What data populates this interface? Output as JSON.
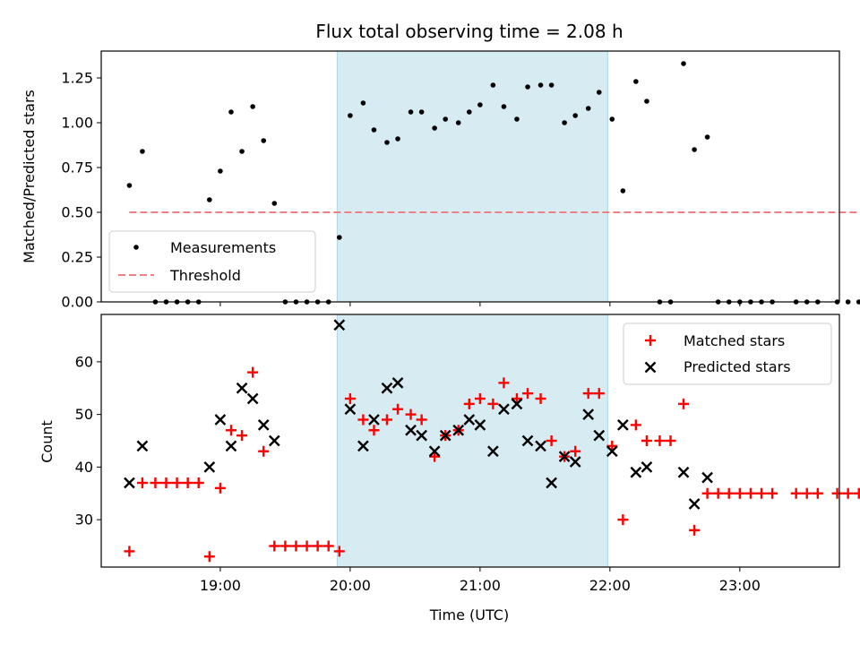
{
  "chart_data": [
    {
      "type": "scatter",
      "title": "Flux total observing time = 2.08 h",
      "xlabel": "",
      "ylabel": "Matched/Predicted stars",
      "xlim": [
        "18:05",
        "23:46"
      ],
      "ylim": [
        0,
        1.4
      ],
      "yticks": [
        "0.00",
        "0.25",
        "0.50",
        "0.75",
        "1.00",
        "1.25"
      ],
      "shaded_interval": [
        "19:54",
        "21:59"
      ],
      "legend_position": "lower-left",
      "series": [
        {
          "name": "Measurements",
          "color": "#000000",
          "marker": "dot",
          "points": [
            [
              "18:18",
              0.65
            ],
            [
              "18:24",
              0.84
            ],
            [
              "18:30",
              0
            ],
            [
              "18:35",
              0
            ],
            [
              "18:40",
              0
            ],
            [
              "18:45",
              0
            ],
            [
              "18:50",
              0
            ],
            [
              "18:55",
              0.57
            ],
            [
              "19:00",
              0.73
            ],
            [
              "19:05",
              1.06
            ],
            [
              "19:10",
              0.84
            ],
            [
              "19:15",
              1.09
            ],
            [
              "19:20",
              0.9
            ],
            [
              "19:25",
              0.55
            ],
            [
              "19:30",
              0
            ],
            [
              "19:35",
              0
            ],
            [
              "19:40",
              0
            ],
            [
              "19:45",
              0
            ],
            [
              "19:50",
              0
            ],
            [
              "19:55",
              0.36
            ],
            [
              "20:00",
              1.04
            ],
            [
              "20:06",
              1.11
            ],
            [
              "20:11",
              0.96
            ],
            [
              "20:17",
              0.89
            ],
            [
              "20:22",
              0.91
            ],
            [
              "20:28",
              1.06
            ],
            [
              "20:33",
              1.06
            ],
            [
              "20:39",
              0.97
            ],
            [
              "20:44",
              1.02
            ],
            [
              "20:50",
              1.0
            ],
            [
              "20:55",
              1.06
            ],
            [
              "21:00",
              1.1
            ],
            [
              "21:06",
              1.21
            ],
            [
              "21:11",
              1.09
            ],
            [
              "21:17",
              1.02
            ],
            [
              "21:22",
              1.2
            ],
            [
              "21:28",
              1.21
            ],
            [
              "21:33",
              1.21
            ],
            [
              "21:39",
              1.0
            ],
            [
              "21:44",
              1.04
            ],
            [
              "21:50",
              1.08
            ],
            [
              "21:55",
              1.17
            ],
            [
              "22:01",
              1.02
            ],
            [
              "22:06",
              0.62
            ],
            [
              "22:12",
              1.23
            ],
            [
              "22:17",
              1.12
            ],
            [
              "22:23",
              0
            ],
            [
              "22:28",
              0
            ],
            [
              "22:34",
              1.33
            ],
            [
              "22:39",
              0.85
            ],
            [
              "22:45",
              0.92
            ],
            [
              "22:50",
              0
            ],
            [
              "22:55",
              0
            ],
            [
              "23:00",
              0
            ],
            [
              "23:05",
              0
            ],
            [
              "23:10",
              0
            ],
            [
              "23:15",
              0
            ],
            [
              "23:26",
              0
            ],
            [
              "23:31",
              0
            ],
            [
              "23:36",
              0
            ],
            [
              "23:45",
              0
            ],
            [
              "23:50",
              0
            ],
            [
              "23:55",
              0
            ]
          ]
        },
        {
          "name": "Threshold",
          "color": "#f08080",
          "style": "dashed",
          "x": [
            "18:18",
            "23:55"
          ],
          "y": [
            0.5,
            0.5
          ]
        }
      ]
    },
    {
      "type": "scatter",
      "title": "",
      "xlabel": "Time (UTC)",
      "ylabel": "Count",
      "xlim": [
        "18:05",
        "23:46"
      ],
      "ylim": [
        21,
        69
      ],
      "yticks": [
        "30",
        "40",
        "50",
        "60"
      ],
      "xticks": [
        "19:00",
        "20:00",
        "21:00",
        "22:00",
        "23:00"
      ],
      "shaded_interval": [
        "19:54",
        "21:59"
      ],
      "legend_position": "top-right",
      "series": [
        {
          "name": "Matched stars",
          "color": "#ff0000",
          "marker": "plus",
          "points": [
            [
              "18:18",
              24
            ],
            [
              "18:24",
              37
            ],
            [
              "18:30",
              37
            ],
            [
              "18:35",
              37
            ],
            [
              "18:40",
              37
            ],
            [
              "18:45",
              37
            ],
            [
              "18:50",
              37
            ],
            [
              "18:55",
              23
            ],
            [
              "19:00",
              36
            ],
            [
              "19:05",
              47
            ],
            [
              "19:10",
              46
            ],
            [
              "19:15",
              58
            ],
            [
              "19:20",
              43
            ],
            [
              "19:25",
              25
            ],
            [
              "19:30",
              25
            ],
            [
              "19:35",
              25
            ],
            [
              "19:40",
              25
            ],
            [
              "19:45",
              25
            ],
            [
              "19:50",
              25
            ],
            [
              "19:55",
              24
            ],
            [
              "20:00",
              53
            ],
            [
              "20:06",
              49
            ],
            [
              "20:11",
              47
            ],
            [
              "20:17",
              49
            ],
            [
              "20:22",
              51
            ],
            [
              "20:28",
              50
            ],
            [
              "20:33",
              49
            ],
            [
              "20:39",
              42
            ],
            [
              "20:44",
              46
            ],
            [
              "20:50",
              47
            ],
            [
              "20:55",
              52
            ],
            [
              "21:00",
              53
            ],
            [
              "21:06",
              52
            ],
            [
              "21:11",
              56
            ],
            [
              "21:17",
              53
            ],
            [
              "21:22",
              54
            ],
            [
              "21:28",
              53
            ],
            [
              "21:33",
              45
            ],
            [
              "21:39",
              42
            ],
            [
              "21:44",
              43
            ],
            [
              "21:50",
              54
            ],
            [
              "21:55",
              54
            ],
            [
              "22:01",
              44
            ],
            [
              "22:06",
              30
            ],
            [
              "22:12",
              48
            ],
            [
              "22:17",
              45
            ],
            [
              "22:23",
              45
            ],
            [
              "22:28",
              45
            ],
            [
              "22:34",
              52
            ],
            [
              "22:39",
              28
            ],
            [
              "22:45",
              35
            ],
            [
              "22:50",
              35
            ],
            [
              "22:55",
              35
            ],
            [
              "23:00",
              35
            ],
            [
              "23:05",
              35
            ],
            [
              "23:10",
              35
            ],
            [
              "23:15",
              35
            ],
            [
              "23:26",
              35
            ],
            [
              "23:31",
              35
            ],
            [
              "23:36",
              35
            ],
            [
              "23:45",
              35
            ],
            [
              "23:50",
              35
            ],
            [
              "23:55",
              35
            ]
          ]
        },
        {
          "name": "Predicted stars",
          "color": "#000000",
          "marker": "cross",
          "points": [
            [
              "18:18",
              37
            ],
            [
              "18:24",
              44
            ],
            [
              "18:55",
              40
            ],
            [
              "19:00",
              49
            ],
            [
              "19:05",
              44
            ],
            [
              "19:10",
              55
            ],
            [
              "19:15",
              53
            ],
            [
              "19:20",
              48
            ],
            [
              "19:25",
              45
            ],
            [
              "19:55",
              67
            ],
            [
              "20:00",
              51
            ],
            [
              "20:06",
              44
            ],
            [
              "20:11",
              49
            ],
            [
              "20:17",
              55
            ],
            [
              "20:22",
              56
            ],
            [
              "20:28",
              47
            ],
            [
              "20:33",
              46
            ],
            [
              "20:39",
              43
            ],
            [
              "20:44",
              46
            ],
            [
              "20:50",
              47
            ],
            [
              "20:55",
              49
            ],
            [
              "21:00",
              48
            ],
            [
              "21:06",
              43
            ],
            [
              "21:11",
              51
            ],
            [
              "21:17",
              52
            ],
            [
              "21:22",
              45
            ],
            [
              "21:28",
              44
            ],
            [
              "21:33",
              37
            ],
            [
              "21:39",
              42
            ],
            [
              "21:44",
              41
            ],
            [
              "21:50",
              50
            ],
            [
              "21:55",
              46
            ],
            [
              "22:01",
              43
            ],
            [
              "22:06",
              48
            ],
            [
              "22:12",
              39
            ],
            [
              "22:17",
              40
            ],
            [
              "22:34",
              39
            ],
            [
              "22:39",
              33
            ],
            [
              "22:45",
              38
            ]
          ]
        }
      ]
    }
  ]
}
